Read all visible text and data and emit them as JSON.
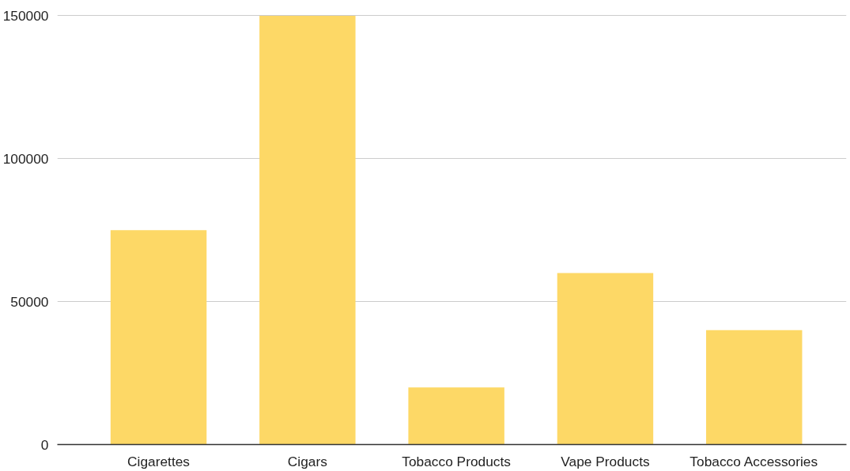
{
  "chart_data": {
    "type": "bar",
    "categories": [
      "Cigarettes",
      "Cigars",
      "Tobacco Products",
      "Vape Products",
      "Tobacco Accessories"
    ],
    "values": [
      75000,
      150000,
      20000,
      60000,
      40000
    ],
    "color": "#fdd866",
    "ylim": [
      0,
      150000
    ],
    "yticks": [
      0,
      50000,
      100000,
      150000
    ],
    "grid": "y"
  }
}
